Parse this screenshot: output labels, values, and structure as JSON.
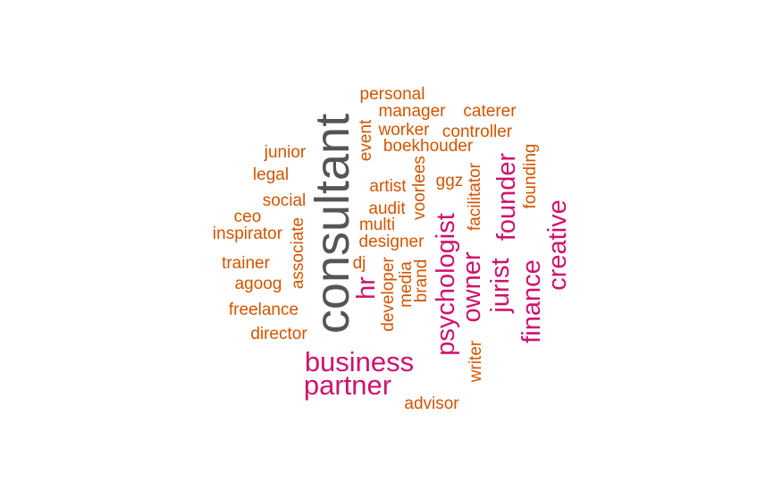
{
  "colors": {
    "gray": "#555555",
    "magenta": "#d0116c",
    "orange": "#d35400"
  },
  "words": [
    {
      "id": "consultant",
      "text": "consultant",
      "color": "gray"
    },
    {
      "id": "business",
      "text": "business",
      "color": "magenta"
    },
    {
      "id": "partner",
      "text": "partner",
      "color": "magenta"
    },
    {
      "id": "psychologist",
      "text": "psychologist",
      "color": "magenta"
    },
    {
      "id": "owner",
      "text": "owner",
      "color": "magenta"
    },
    {
      "id": "jurist",
      "text": "jurist",
      "color": "magenta"
    },
    {
      "id": "founder",
      "text": "founder",
      "color": "magenta"
    },
    {
      "id": "finance",
      "text": "finance",
      "color": "magenta"
    },
    {
      "id": "creative",
      "text": "creative",
      "color": "magenta"
    },
    {
      "id": "hr",
      "text": "hr",
      "color": "magenta"
    },
    {
      "id": "personal",
      "text": "personal",
      "color": "orange"
    },
    {
      "id": "manager",
      "text": "manager",
      "color": "orange"
    },
    {
      "id": "caterer",
      "text": "caterer",
      "color": "orange"
    },
    {
      "id": "worker",
      "text": "worker",
      "color": "orange"
    },
    {
      "id": "controller",
      "text": "controller",
      "color": "orange"
    },
    {
      "id": "boekhouder",
      "text": "boekhouder",
      "color": "orange"
    },
    {
      "id": "event",
      "text": "event",
      "color": "orange"
    },
    {
      "id": "junior",
      "text": "junior",
      "color": "orange"
    },
    {
      "id": "legal",
      "text": "legal",
      "color": "orange"
    },
    {
      "id": "social",
      "text": "social",
      "color": "orange"
    },
    {
      "id": "ceo",
      "text": "ceo",
      "color": "orange"
    },
    {
      "id": "inspirator",
      "text": "inspirator",
      "color": "orange"
    },
    {
      "id": "trainer",
      "text": "trainer",
      "color": "orange"
    },
    {
      "id": "agoog",
      "text": "agoog",
      "color": "orange"
    },
    {
      "id": "freelance",
      "text": "freelance",
      "color": "orange"
    },
    {
      "id": "director",
      "text": "director",
      "color": "orange"
    },
    {
      "id": "associate",
      "text": "associate",
      "color": "orange"
    },
    {
      "id": "artist",
      "text": "artist",
      "color": "orange"
    },
    {
      "id": "audit",
      "text": "audit",
      "color": "orange"
    },
    {
      "id": "multi",
      "text": "multi",
      "color": "orange"
    },
    {
      "id": "designer",
      "text": "designer",
      "color": "orange"
    },
    {
      "id": "dj",
      "text": "dj",
      "color": "orange"
    },
    {
      "id": "developer",
      "text": "developer",
      "color": "orange"
    },
    {
      "id": "media",
      "text": "media",
      "color": "orange"
    },
    {
      "id": "brand",
      "text": "brand",
      "color": "orange"
    },
    {
      "id": "voorlees",
      "text": "voorlees",
      "color": "orange"
    },
    {
      "id": "ggz",
      "text": "ggz",
      "color": "orange"
    },
    {
      "id": "facilitator",
      "text": "facilitator",
      "color": "orange"
    },
    {
      "id": "founding",
      "text": "founding",
      "color": "orange"
    },
    {
      "id": "writer",
      "text": "writer",
      "color": "orange"
    },
    {
      "id": "advisor",
      "text": "advisor",
      "color": "orange"
    }
  ]
}
